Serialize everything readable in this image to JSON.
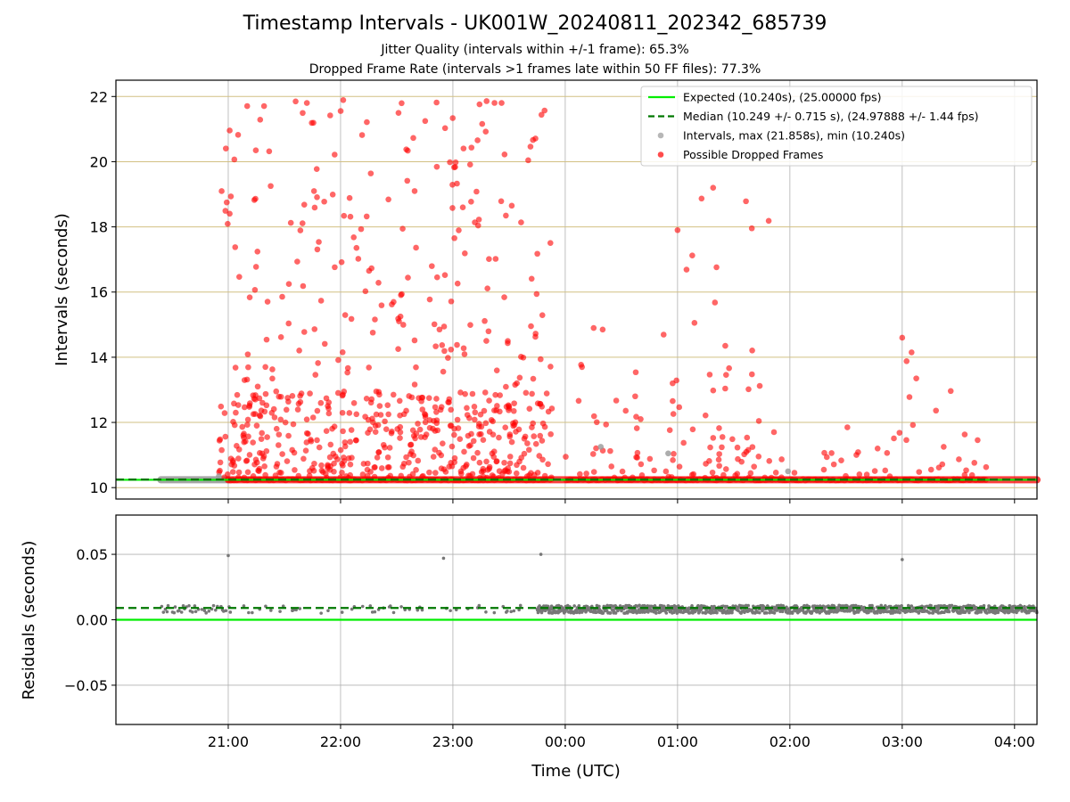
{
  "figure": {
    "title": "Timestamp Intervals - UK001W_20240811_202342_685739",
    "subtitle_1": "Jitter Quality (intervals within +/-1 frame): 65.3%",
    "subtitle_2": "Dropped Frame Rate (intervals >1 frames late within 50 FF files): 77.3%"
  },
  "chart_data": [
    {
      "type": "scatter",
      "panel": "top",
      "xlabel": "",
      "ylabel": "Intervals (seconds)",
      "xlim": [
        "20:00",
        "04:12"
      ],
      "ylim": [
        9.65,
        22.5
      ],
      "yticks": [
        10,
        12,
        14,
        16,
        18,
        20,
        22
      ],
      "ytick_labels": [
        "10",
        "12",
        "14",
        "16",
        "18",
        "20",
        "22"
      ],
      "grid": "on",
      "legend_placement": "top-right",
      "lines": [
        {
          "name": "Expected (10.240s), (25.00000 fps)",
          "y": 10.24,
          "color": "#00ee00",
          "style": "solid"
        },
        {
          "name": "Median (10.249 +/- 0.715 s), (24.97888 +/- 1.44 fps)",
          "y": 10.249,
          "color": "#007700",
          "style": "dashed"
        }
      ],
      "series": [
        {
          "name": "Intervals, max (21.858s), min (10.240s)",
          "color": "#999999",
          "max": 21.858,
          "min": 10.24
        },
        {
          "name": "Possible Dropped Frames",
          "color": "#ff0000"
        }
      ],
      "baseline_segments": [
        {
          "from": "20:24",
          "to": "21:00",
          "y": 10.24,
          "color": "#888888"
        },
        {
          "from": "21:00",
          "to": "04:12",
          "y": 10.24,
          "color": "#ff0000"
        }
      ],
      "dropped_frame_clusters": [
        {
          "from": "20:55",
          "to": "23:53",
          "y_min": 10.3,
          "y_max": 21.9,
          "y_mode": 12.2,
          "count": 650
        },
        {
          "from": "00:00",
          "to": "01:00",
          "y_min": 10.3,
          "y_max": 14.9,
          "y_mode": 11.0,
          "count": 45
        },
        {
          "from": "01:00",
          "to": "01:50",
          "y_min": 10.3,
          "y_max": 19.2,
          "y_mode": 11.2,
          "count": 60
        },
        {
          "from": "01:50",
          "to": "02:50",
          "y_min": 10.3,
          "y_max": 12.1,
          "y_mode": 10.9,
          "count": 20
        },
        {
          "from": "02:50",
          "to": "03:45",
          "y_min": 10.3,
          "y_max": 14.6,
          "y_mode": 11.3,
          "count": 25
        }
      ],
      "highlighted_points": [
        {
          "x": "21:36",
          "y": 21.85
        },
        {
          "x": "21:42",
          "y": 21.8
        },
        {
          "x": "23:18",
          "y": 21.858
        },
        {
          "x": "23:26",
          "y": 21.8
        },
        {
          "x": "01:19",
          "y": 19.2
        },
        {
          "x": "01:00",
          "y": 17.9
        },
        {
          "x": "00:20",
          "y": 14.85
        },
        {
          "x": "03:00",
          "y": 14.6
        },
        {
          "x": "03:05",
          "y": 14.15
        },
        {
          "x": "00:19",
          "y": 11.25,
          "series": "gray"
        },
        {
          "x": "00:55",
          "y": 11.05,
          "series": "gray"
        },
        {
          "x": "01:59",
          "y": 10.5,
          "series": "gray"
        },
        {
          "x": "20:55",
          "y": 10.35,
          "series": "gray"
        }
      ]
    },
    {
      "type": "scatter",
      "panel": "bottom",
      "xlabel": "Time (UTC)",
      "ylabel": "Residuals (seconds)",
      "xlim": [
        "20:00",
        "04:12"
      ],
      "ylim": [
        -0.08,
        0.08
      ],
      "yticks": [
        -0.05,
        0.0,
        0.05
      ],
      "ytick_labels": [
        "−0.05",
        "0.00",
        "0.05"
      ],
      "xticks": [
        "21:00",
        "22:00",
        "23:00",
        "00:00",
        "01:00",
        "02:00",
        "03:00",
        "04:00"
      ],
      "grid": "on",
      "lines": [
        {
          "name": "Expected",
          "y": 0.0,
          "color": "#00ee00",
          "style": "solid"
        },
        {
          "name": "Median",
          "y": 0.009,
          "color": "#007700",
          "style": "dashed"
        }
      ],
      "series": [
        {
          "name": "Residuals",
          "color": "#777777"
        }
      ],
      "residual_band": {
        "center": 0.008,
        "spread": 0.003
      },
      "outliers": [
        {
          "x": "21:00",
          "y": 0.049
        },
        {
          "x": "22:55",
          "y": 0.047
        },
        {
          "x": "23:47",
          "y": 0.05
        },
        {
          "x": "03:00",
          "y": 0.046
        }
      ]
    }
  ]
}
